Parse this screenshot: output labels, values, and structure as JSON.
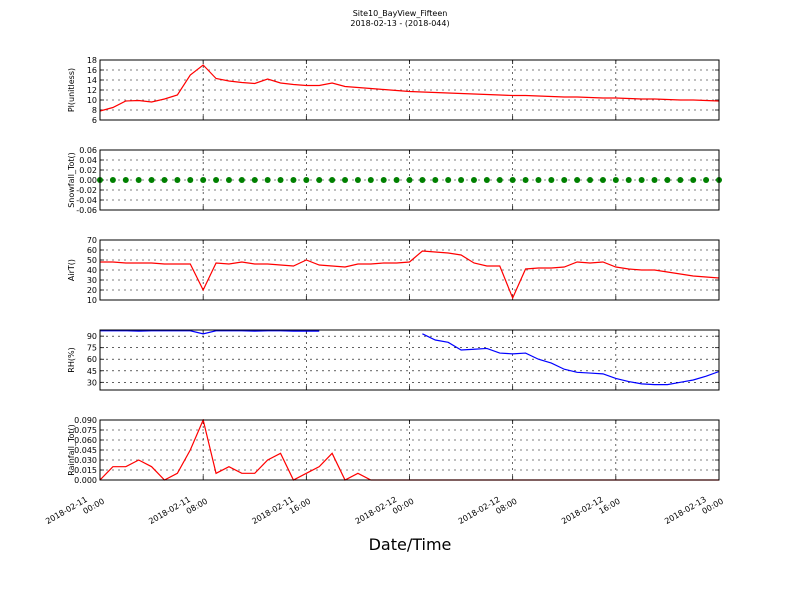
{
  "title": "Site10_BayView_Fifteen",
  "subtitle": "2018-02-13 - (2018-044)",
  "xlabel": "Date/Time",
  "chart_data": [
    {
      "type": "line",
      "ylabel": "Pl(unitless)",
      "ylim": [
        6,
        18
      ],
      "yticks": [
        6,
        8,
        10,
        12,
        14,
        16,
        18
      ],
      "xlim": [
        "2018-02-11 00:00",
        "2018-02-13 00:00"
      ],
      "xticks": [
        "2018-02-11 00:00",
        "2018-02-11 08:00",
        "2018-02-11 16:00",
        "2018-02-12 00:00",
        "2018-02-12 08:00",
        "2018-02-12 16:00",
        "2018-02-13 00:00"
      ],
      "x": [
        "2018-02-11 00:00",
        "2018-02-11 01:00",
        "2018-02-11 02:00",
        "2018-02-11 03:00",
        "2018-02-11 04:00",
        "2018-02-11 05:00",
        "2018-02-11 06:00",
        "2018-02-11 07:00",
        "2018-02-11 08:00",
        "2018-02-11 09:00",
        "2018-02-11 10:00",
        "2018-02-11 11:00",
        "2018-02-11 12:00",
        "2018-02-11 13:00",
        "2018-02-11 14:00",
        "2018-02-11 15:00",
        "2018-02-11 16:00",
        "2018-02-11 17:00",
        "2018-02-11 18:00",
        "2018-02-11 19:00",
        "2018-02-11 20:00",
        "2018-02-11 21:00",
        "2018-02-11 22:00",
        "2018-02-11 23:00",
        "2018-02-12 00:00",
        "2018-02-12 01:00",
        "2018-02-12 02:00",
        "2018-02-12 03:00",
        "2018-02-12 04:00",
        "2018-02-12 05:00",
        "2018-02-12 06:00",
        "2018-02-12 07:00",
        "2018-02-12 08:00",
        "2018-02-12 09:00",
        "2018-02-12 10:00",
        "2018-02-12 11:00",
        "2018-02-12 12:00",
        "2018-02-12 13:00",
        "2018-02-12 14:00",
        "2018-02-12 15:00",
        "2018-02-12 16:00",
        "2018-02-12 17:00",
        "2018-02-12 18:00",
        "2018-02-12 19:00",
        "2018-02-12 20:00",
        "2018-02-12 21:00",
        "2018-02-12 22:00",
        "2018-02-12 23:00",
        "2018-02-13 00:00"
      ],
      "series": [
        {
          "color": "#ff0000",
          "values": [
            7.8,
            8.5,
            9.8,
            9.9,
            9.6,
            10.2,
            11,
            15,
            17,
            14.3,
            13.8,
            13.5,
            13.3,
            14.2,
            13.4,
            13.1,
            12.9,
            12.9,
            13.4,
            12.7,
            12.5,
            12.3,
            12.1,
            11.9,
            11.7,
            11.6,
            11.5,
            11.4,
            11.3,
            11.2,
            11.1,
            11,
            10.9,
            10.9,
            10.8,
            10.7,
            10.6,
            10.6,
            10.5,
            10.4,
            10.4,
            10.3,
            10.2,
            10.2,
            10.1,
            10,
            10,
            9.9,
            9.8
          ]
        }
      ]
    },
    {
      "type": "scatter",
      "ylabel": "Snowfall_Tot()",
      "ylim": [
        -0.06,
        0.06
      ],
      "yticks": [
        -0.06,
        -0.04,
        -0.02,
        {
          "value": 0,
          "label": "0.00"
        },
        0.02,
        0.04,
        0.06
      ],
      "xlim": [
        "2018-02-11 00:00",
        "2018-02-13 00:00"
      ],
      "xticks": [
        "2018-02-11 00:00",
        "2018-02-11 08:00",
        "2018-02-11 16:00",
        "2018-02-12 00:00",
        "2018-02-12 08:00",
        "2018-02-12 16:00",
        "2018-02-13 00:00"
      ],
      "x": [
        "2018-02-11 00:00",
        "2018-02-11 01:00",
        "2018-02-11 02:00",
        "2018-02-11 03:00",
        "2018-02-11 04:00",
        "2018-02-11 05:00",
        "2018-02-11 06:00",
        "2018-02-11 07:00",
        "2018-02-11 08:00",
        "2018-02-11 09:00",
        "2018-02-11 10:00",
        "2018-02-11 11:00",
        "2018-02-11 12:00",
        "2018-02-11 13:00",
        "2018-02-11 14:00",
        "2018-02-11 15:00",
        "2018-02-11 16:00",
        "2018-02-11 17:00",
        "2018-02-11 18:00",
        "2018-02-11 19:00",
        "2018-02-11 20:00",
        "2018-02-11 21:00",
        "2018-02-11 22:00",
        "2018-02-11 23:00",
        "2018-02-12 00:00",
        "2018-02-12 01:00",
        "2018-02-12 02:00",
        "2018-02-12 03:00",
        "2018-02-12 04:00",
        "2018-02-12 05:00",
        "2018-02-12 06:00",
        "2018-02-12 07:00",
        "2018-02-12 08:00",
        "2018-02-12 09:00",
        "2018-02-12 10:00",
        "2018-02-12 11:00",
        "2018-02-12 12:00",
        "2018-02-12 13:00",
        "2018-02-12 14:00",
        "2018-02-12 15:00",
        "2018-02-12 16:00",
        "2018-02-12 17:00",
        "2018-02-12 18:00",
        "2018-02-12 19:00",
        "2018-02-12 20:00",
        "2018-02-12 21:00",
        "2018-02-12 22:00",
        "2018-02-12 23:00",
        "2018-02-13 00:00"
      ],
      "series": [
        {
          "color": "#008000",
          "values": [
            0,
            0,
            0,
            0,
            0,
            0,
            0,
            0,
            0,
            0,
            0,
            0,
            0,
            0,
            0,
            0,
            0,
            0,
            0,
            0,
            0,
            0,
            0,
            0,
            0,
            0,
            0,
            0,
            0,
            0,
            0,
            0,
            0,
            0,
            0,
            0,
            0,
            0,
            0,
            0,
            0,
            0,
            0,
            0,
            0,
            0,
            0,
            0,
            0
          ]
        }
      ]
    },
    {
      "type": "line",
      "ylabel": "AirT()",
      "ylim": [
        10,
        70
      ],
      "yticks": [
        10,
        20,
        30,
        40,
        50,
        60,
        70
      ],
      "xlim": [
        "2018-02-11 00:00",
        "2018-02-13 00:00"
      ],
      "xticks": [
        "2018-02-11 00:00",
        "2018-02-11 08:00",
        "2018-02-11 16:00",
        "2018-02-12 00:00",
        "2018-02-12 08:00",
        "2018-02-12 16:00",
        "2018-02-13 00:00"
      ],
      "x": [
        "2018-02-11 00:00",
        "2018-02-11 01:00",
        "2018-02-11 02:00",
        "2018-02-11 03:00",
        "2018-02-11 04:00",
        "2018-02-11 05:00",
        "2018-02-11 06:00",
        "2018-02-11 07:00",
        "2018-02-11 08:00",
        "2018-02-11 09:00",
        "2018-02-11 10:00",
        "2018-02-11 11:00",
        "2018-02-11 12:00",
        "2018-02-11 13:00",
        "2018-02-11 14:00",
        "2018-02-11 15:00",
        "2018-02-11 16:00",
        "2018-02-11 17:00",
        "2018-02-11 18:00",
        "2018-02-11 19:00",
        "2018-02-11 20:00",
        "2018-02-11 21:00",
        "2018-02-11 22:00",
        "2018-02-11 23:00",
        "2018-02-12 00:00",
        "2018-02-12 01:00",
        "2018-02-12 02:00",
        "2018-02-12 03:00",
        "2018-02-12 04:00",
        "2018-02-12 05:00",
        "2018-02-12 06:00",
        "2018-02-12 07:00",
        "2018-02-12 08:00",
        "2018-02-12 09:00",
        "2018-02-12 10:00",
        "2018-02-12 11:00",
        "2018-02-12 12:00",
        "2018-02-12 13:00",
        "2018-02-12 14:00",
        "2018-02-12 15:00",
        "2018-02-12 16:00",
        "2018-02-12 17:00",
        "2018-02-12 18:00",
        "2018-02-12 19:00",
        "2018-02-12 20:00",
        "2018-02-12 21:00",
        "2018-02-12 22:00",
        "2018-02-12 23:00",
        "2018-02-13 00:00"
      ],
      "series": [
        {
          "color": "#ff0000",
          "values": [
            48,
            48,
            47,
            47,
            47,
            46,
            46,
            46,
            20,
            47,
            46,
            48,
            46,
            46,
            45,
            44,
            50,
            45,
            44,
            43,
            46,
            46,
            47,
            47,
            48,
            59,
            58,
            57,
            55,
            47,
            44,
            44,
            12,
            41,
            42,
            42,
            43,
            48,
            47,
            48,
            43,
            41,
            40,
            40,
            38,
            36,
            34,
            33,
            32
          ]
        }
      ]
    },
    {
      "type": "line",
      "ylabel": "RH(%)",
      "ylim": [
        20,
        98
      ],
      "yticks": [
        30,
        45,
        60,
        75,
        90
      ],
      "xlim": [
        "2018-02-11 00:00",
        "2018-02-13 00:00"
      ],
      "xticks": [
        "2018-02-11 00:00",
        "2018-02-11 08:00",
        "2018-02-11 16:00",
        "2018-02-12 00:00",
        "2018-02-12 08:00",
        "2018-02-12 16:00",
        "2018-02-13 00:00"
      ],
      "x": [
        "2018-02-11 00:00",
        "2018-02-11 01:00",
        "2018-02-11 02:00",
        "2018-02-11 03:00",
        "2018-02-11 04:00",
        "2018-02-11 05:00",
        "2018-02-11 06:00",
        "2018-02-11 07:00",
        "2018-02-11 08:00",
        "2018-02-11 09:00",
        "2018-02-11 10:00",
        "2018-02-11 11:00",
        "2018-02-11 12:00",
        "2018-02-11 13:00",
        "2018-02-11 14:00",
        "2018-02-11 15:00",
        "2018-02-11 16:00",
        "2018-02-11 17:00",
        "2018-02-11 18:00",
        "2018-02-11 19:00",
        "2018-02-11 20:00",
        "2018-02-11 21:00",
        "2018-02-11 22:00",
        "2018-02-11 23:00",
        "2018-02-12 00:00",
        "2018-02-12 01:00",
        "2018-02-12 02:00",
        "2018-02-12 03:00",
        "2018-02-12 04:00",
        "2018-02-12 05:00",
        "2018-02-12 06:00",
        "2018-02-12 07:00",
        "2018-02-12 08:00",
        "2018-02-12 09:00",
        "2018-02-12 10:00",
        "2018-02-12 11:00",
        "2018-02-12 12:00",
        "2018-02-12 13:00",
        "2018-02-12 14:00",
        "2018-02-12 15:00",
        "2018-02-12 16:00",
        "2018-02-12 17:00",
        "2018-02-12 18:00",
        "2018-02-12 19:00",
        "2018-02-12 20:00",
        "2018-02-12 21:00",
        "2018-02-12 22:00",
        "2018-02-12 23:00",
        "2018-02-13 00:00"
      ],
      "series": [
        {
          "color": "#0000ff",
          "values": [
            97,
            97,
            97,
            96.5,
            97,
            97,
            97,
            97,
            93,
            97,
            97,
            97,
            96.5,
            97,
            97,
            96.5,
            96.5,
            96.5,
            null,
            null,
            null,
            null,
            null,
            null,
            null,
            93,
            85,
            82,
            72,
            73,
            74,
            68,
            67,
            68,
            60,
            55,
            47,
            43,
            42,
            41,
            35,
            31,
            28,
            27,
            27,
            30,
            33,
            38,
            44
          ]
        }
      ]
    },
    {
      "type": "line",
      "ylabel": "Rainfall_Tot()",
      "ylim": [
        0,
        0.09
      ],
      "yticks": [
        {
          "value": 0,
          "label": "0.000"
        },
        0.015,
        {
          "value": 0.03,
          "label": "0.030"
        },
        0.045,
        {
          "value": 0.06,
          "label": "0.060"
        },
        0.075,
        {
          "value": 0.09,
          "label": "0.090"
        }
      ],
      "xlim": [
        "2018-02-11 00:00",
        "2018-02-13 00:00"
      ],
      "xticks": [
        "2018-02-11 00:00",
        "2018-02-11 08:00",
        "2018-02-11 16:00",
        "2018-02-12 00:00",
        "2018-02-12 08:00",
        "2018-02-12 16:00",
        "2018-02-13 00:00"
      ],
      "x": [
        "2018-02-11 00:00",
        "2018-02-11 01:00",
        "2018-02-11 02:00",
        "2018-02-11 03:00",
        "2018-02-11 04:00",
        "2018-02-11 05:00",
        "2018-02-11 06:00",
        "2018-02-11 07:00",
        "2018-02-11 08:00",
        "2018-02-11 09:00",
        "2018-02-11 10:00",
        "2018-02-11 11:00",
        "2018-02-11 12:00",
        "2018-02-11 13:00",
        "2018-02-11 14:00",
        "2018-02-11 15:00",
        "2018-02-11 16:00",
        "2018-02-11 17:00",
        "2018-02-11 18:00",
        "2018-02-11 19:00",
        "2018-02-11 20:00",
        "2018-02-11 21:00",
        "2018-02-11 22:00",
        "2018-02-11 23:00",
        "2018-02-12 00:00",
        "2018-02-12 01:00",
        "2018-02-12 02:00",
        "2018-02-12 03:00",
        "2018-02-12 04:00",
        "2018-02-12 05:00",
        "2018-02-12 06:00",
        "2018-02-12 07:00",
        "2018-02-12 08:00",
        "2018-02-12 09:00",
        "2018-02-12 10:00",
        "2018-02-12 11:00",
        "2018-02-12 12:00",
        "2018-02-12 13:00",
        "2018-02-12 14:00",
        "2018-02-12 15:00",
        "2018-02-12 16:00",
        "2018-02-12 17:00",
        "2018-02-12 18:00",
        "2018-02-12 19:00",
        "2018-02-12 20:00",
        "2018-02-12 21:00",
        "2018-02-12 22:00",
        "2018-02-12 23:00",
        "2018-02-13 00:00"
      ],
      "series": [
        {
          "color": "#ff0000",
          "values": [
            0,
            0.02,
            0.02,
            0.03,
            0.02,
            0,
            0.01,
            0.045,
            0.09,
            0.01,
            0.02,
            0.01,
            0.01,
            0.03,
            0.04,
            0,
            0.01,
            0.02,
            0.04,
            0,
            0.01,
            0,
            0,
            0,
            0,
            0,
            0,
            0,
            0,
            0,
            0,
            0,
            0,
            0,
            0,
            0,
            0,
            0,
            0,
            0,
            0,
            0,
            0,
            0,
            0,
            0,
            0,
            0,
            0
          ]
        }
      ]
    }
  ]
}
